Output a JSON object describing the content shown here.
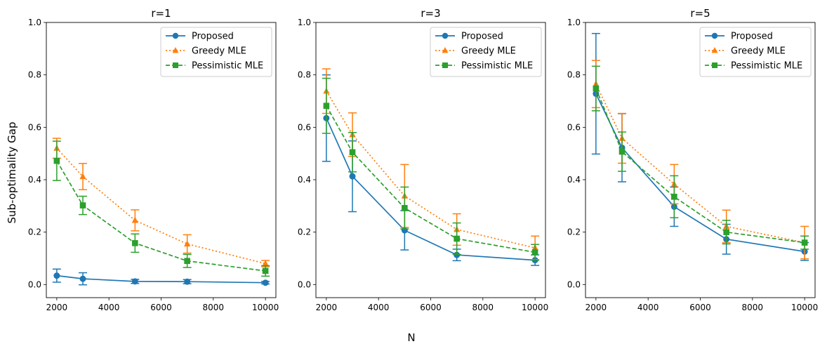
{
  "figure": {
    "ylabel": "Sub-optimality Gap",
    "xlabel": "N"
  },
  "colors": {
    "proposed": "#1f77b4",
    "greedy": "#ff7f0e",
    "pessimistic": "#2ca02c"
  },
  "chart_data": [
    {
      "type": "line",
      "title": "r=1",
      "x": [
        2000,
        3000,
        5000,
        7000,
        10000
      ],
      "xlim": [
        1600,
        10400
      ],
      "ylim": [
        -0.05,
        1.0
      ],
      "xticks": [
        2000,
        4000,
        6000,
        8000,
        10000
      ],
      "yticks": [
        0.0,
        0.2,
        0.4,
        0.6,
        0.8,
        1.0
      ],
      "legend": "top-right",
      "series": [
        {
          "name": "Proposed",
          "style": "solid",
          "marker": "circle",
          "values": [
            0.034,
            0.022,
            0.012,
            0.011,
            0.007
          ],
          "err": [
            0.025,
            0.023,
            0.008,
            0.008,
            0.005
          ]
        },
        {
          "name": "Greedy MLE",
          "style": "dotted",
          "marker": "triangle",
          "values": [
            0.52,
            0.412,
            0.245,
            0.155,
            0.08
          ],
          "err": [
            0.038,
            0.05,
            0.04,
            0.035,
            0.012
          ]
        },
        {
          "name": "Pessimistic MLE",
          "style": "dashed",
          "marker": "square",
          "values": [
            0.472,
            0.302,
            0.158,
            0.09,
            0.052
          ],
          "err": [
            0.075,
            0.035,
            0.035,
            0.025,
            0.02
          ]
        }
      ]
    },
    {
      "type": "line",
      "title": "r=3",
      "x": [
        2000,
        3000,
        5000,
        7000,
        10000
      ],
      "xlim": [
        1600,
        10400
      ],
      "ylim": [
        -0.05,
        1.0
      ],
      "xticks": [
        2000,
        4000,
        6000,
        8000,
        10000
      ],
      "yticks": [
        0.0,
        0.2,
        0.4,
        0.6,
        0.8,
        1.0
      ],
      "legend": "top-right",
      "series": [
        {
          "name": "Proposed",
          "style": "solid",
          "marker": "circle",
          "values": [
            0.635,
            0.413,
            0.207,
            0.113,
            0.093
          ],
          "err": [
            0.165,
            0.135,
            0.075,
            0.022,
            0.02
          ]
        },
        {
          "name": "Greedy MLE",
          "style": "dotted",
          "marker": "triangle",
          "values": [
            0.738,
            0.572,
            0.338,
            0.21,
            0.14
          ],
          "err": [
            0.085,
            0.083,
            0.12,
            0.06,
            0.045
          ]
        },
        {
          "name": "Pessimistic MLE",
          "style": "dashed",
          "marker": "square",
          "values": [
            0.682,
            0.505,
            0.292,
            0.175,
            0.123
          ],
          "err": [
            0.105,
            0.075,
            0.08,
            0.06,
            0.03
          ]
        }
      ]
    },
    {
      "type": "line",
      "title": "r=5",
      "x": [
        2000,
        3000,
        5000,
        7000,
        10000
      ],
      "xlim": [
        1600,
        10400
      ],
      "ylim": [
        -0.05,
        1.0
      ],
      "xticks": [
        2000,
        4000,
        6000,
        8000,
        10000
      ],
      "yticks": [
        0.0,
        0.2,
        0.4,
        0.6,
        0.8,
        1.0
      ],
      "legend": "top-right",
      "series": [
        {
          "name": "Proposed",
          "style": "solid",
          "marker": "circle",
          "values": [
            0.728,
            0.522,
            0.297,
            0.173,
            0.126
          ],
          "err": [
            0.23,
            0.13,
            0.075,
            0.057,
            0.034
          ]
        },
        {
          "name": "Greedy MLE",
          "style": "dotted",
          "marker": "triangle",
          "values": [
            0.765,
            0.558,
            0.383,
            0.222,
            0.16
          ],
          "err": [
            0.09,
            0.095,
            0.075,
            0.062,
            0.062
          ]
        },
        {
          "name": "Pessimistic MLE",
          "style": "dashed",
          "marker": "square",
          "values": [
            0.748,
            0.507,
            0.335,
            0.2,
            0.16
          ],
          "err": [
            0.085,
            0.075,
            0.08,
            0.045,
            0.025
          ]
        }
      ]
    }
  ]
}
